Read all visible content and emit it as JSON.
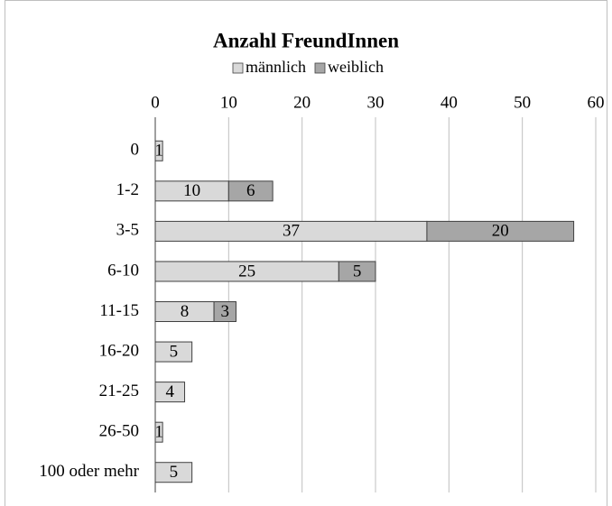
{
  "chart_data": {
    "type": "stacked-barh",
    "title": "Anzahl FreundInnen",
    "categories": [
      "0",
      "1-2",
      "3-5",
      "6-10",
      "11-15",
      "16-20",
      "21-25",
      "26-50",
      "100 oder mehr"
    ],
    "series": [
      {
        "name": "männlich",
        "color": "#d9d9d9",
        "values": [
          1,
          10,
          37,
          25,
          8,
          5,
          4,
          1,
          5
        ]
      },
      {
        "name": "weiblich",
        "color": "#a6a6a6",
        "values": [
          null,
          6,
          20,
          5,
          3,
          null,
          null,
          null,
          null
        ]
      }
    ],
    "xlim": [
      0,
      60
    ],
    "xticks": [
      0,
      10,
      20,
      30,
      40,
      50,
      60
    ],
    "grid": true,
    "legend": "top"
  }
}
